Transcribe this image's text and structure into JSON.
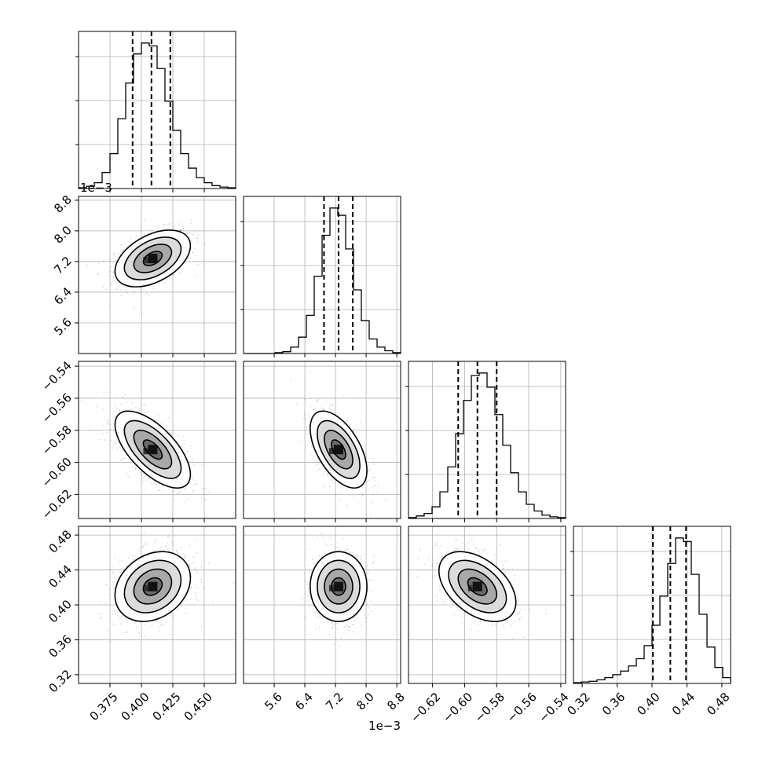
{
  "chart_data": {
    "type": "corner",
    "parameters": [
      {
        "id": "p0",
        "range": [
          0.35,
          0.475
        ],
        "ticks": [
          0.375,
          0.4,
          0.425,
          0.45
        ],
        "tick_labels": [
          "0.375",
          "0.400",
          "0.425",
          "0.450"
        ],
        "offset_text": "",
        "quantiles": [
          0.393,
          0.408,
          0.423
        ],
        "hist": [
          1,
          3,
          8,
          22,
          48,
          96,
          145,
          185,
          200,
          196,
          165,
          120,
          80,
          48,
          28,
          15,
          8,
          4,
          2,
          1
        ],
        "mean": 0.409,
        "sd": 0.015
      },
      {
        "id": "p1",
        "range": [
          4.8,
          8.9
        ],
        "ticks": [
          5.6,
          6.4,
          7.2,
          8.0,
          8.8
        ],
        "tick_labels": [
          "5.6",
          "6.4",
          "7.2",
          "8.0",
          "8.8"
        ],
        "offset_text": "1e−3",
        "quantiles": [
          6.9,
          7.28,
          7.65
        ],
        "hist": [
          0,
          0,
          0,
          0,
          1,
          2,
          7,
          18,
          42,
          85,
          130,
          160,
          152,
          115,
          70,
          36,
          16,
          7,
          3,
          1
        ],
        "mean": 7.28,
        "sd": 0.37
      },
      {
        "id": "p2",
        "range": [
          -0.635,
          -0.537
        ],
        "ticks": [
          -0.62,
          -0.6,
          -0.58,
          -0.56,
          -0.54
        ],
        "tick_labels": [
          "−0.62",
          "−0.60",
          "−0.58",
          "−0.56",
          "−0.54"
        ],
        "offset_text": "",
        "quantiles": [
          -0.604,
          -0.592,
          -0.58
        ],
        "hist": [
          1,
          3,
          6,
          14,
          32,
          62,
          102,
          142,
          172,
          175,
          158,
          125,
          88,
          55,
          32,
          17,
          9,
          4,
          2,
          1
        ],
        "mean": -0.592,
        "sd": 0.012
      },
      {
        "id": "p3",
        "range": [
          0.31,
          0.49
        ],
        "ticks": [
          0.32,
          0.36,
          0.4,
          0.44,
          0.48
        ],
        "tick_labels": [
          "0.32",
          "0.36",
          "0.40",
          "0.44",
          "0.48"
        ],
        "offset_text": "",
        "quantiles": [
          0.401,
          0.421,
          0.439
        ],
        "hist": [
          1,
          2,
          3,
          5,
          8,
          12,
          17,
          24,
          34,
          52,
          80,
          120,
          165,
          200,
          195,
          150,
          95,
          50,
          22,
          8
        ],
        "mean": 0.421,
        "sd": 0.02
      }
    ],
    "correlations": {
      "1,0": 0.45,
      "2,0": -0.65,
      "2,1": -0.55,
      "3,0": 0.25,
      "3,1": 0.0,
      "3,2": -0.45
    },
    "grid": true,
    "contour_levels": 4
  }
}
